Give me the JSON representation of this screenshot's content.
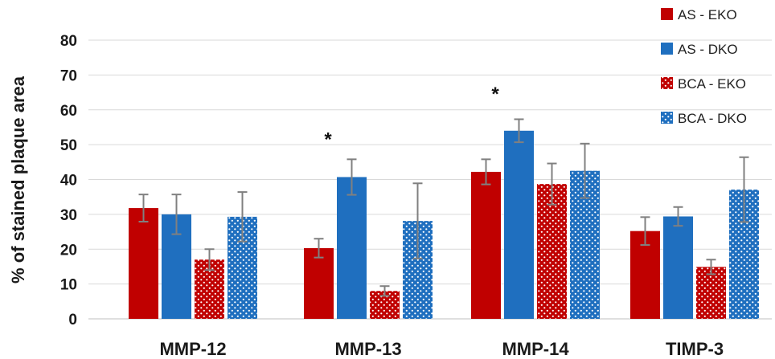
{
  "chart_data": {
    "type": "bar",
    "title": "",
    "xlabel": "",
    "ylabel": "% of stained plaque area",
    "ylim": [
      0,
      80
    ],
    "yticks": [
      "0",
      "10",
      "20",
      "30",
      "40",
      "50",
      "60",
      "70",
      "80"
    ],
    "grid": true,
    "legend_position": "top-right",
    "categories": [
      "MMP-12",
      "MMP-13",
      "MMP-14",
      "TIMP-3"
    ],
    "series": [
      {
        "name": "AS - EKO",
        "color": "#c00000",
        "pattern": "solid",
        "values": [
          31.8,
          20.3,
          42.2,
          25.2
        ],
        "errors": [
          3.9,
          2.7,
          3.6,
          4.0
        ]
      },
      {
        "name": "AS - DKO",
        "color": "#1f6fbf",
        "pattern": "solid",
        "values": [
          30.0,
          40.7,
          54.0,
          29.4
        ],
        "errors": [
          5.7,
          5.1,
          3.3,
          2.7
        ]
      },
      {
        "name": "BCA - EKO",
        "color": "#c00000",
        "pattern": "dotted",
        "values": [
          17.0,
          8.0,
          38.7,
          14.9
        ],
        "errors": [
          3.0,
          1.4,
          5.9,
          2.1
        ]
      },
      {
        "name": "BCA - DKO",
        "color": "#1f6fbf",
        "pattern": "dotted",
        "values": [
          29.3,
          28.1,
          42.5,
          37.1
        ],
        "errors": [
          7.1,
          10.8,
          7.8,
          9.3
        ]
      }
    ],
    "annotations": [
      {
        "text": "*",
        "category": "MMP-13",
        "y": 52
      },
      {
        "text": "*",
        "category": "MMP-14",
        "y": 65
      }
    ]
  }
}
